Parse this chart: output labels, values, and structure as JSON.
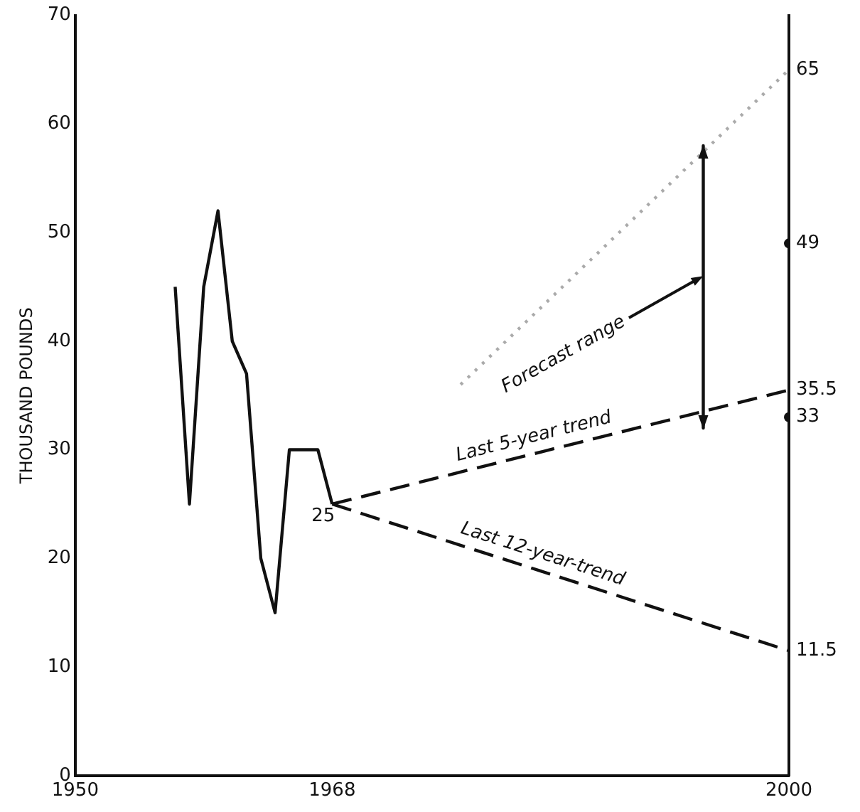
{
  "chart_data": {
    "type": "line",
    "ylabel": "THOUSAND POUNDS",
    "xlim": [
      1950,
      2000
    ],
    "xticks": [
      1950,
      1968,
      2000
    ],
    "ylim": [
      0,
      70
    ],
    "yticks": [
      0,
      10,
      20,
      30,
      40,
      50,
      60,
      70
    ],
    "grid": false,
    "legend": false,
    "annotations": [
      {
        "text": "Forecast range",
        "x": 1994,
        "y": 46
      }
    ],
    "series": [
      {
        "type": "line",
        "color": "#111111",
        "line_style": "solid",
        "x": [
          1957,
          1958,
          1959,
          1960,
          1961,
          1962,
          1963,
          1964,
          1965,
          1967,
          1968
        ],
        "values": [
          45,
          25,
          45,
          52,
          40,
          37,
          20,
          15,
          30,
          30,
          25
        ],
        "value_labels": [
          null,
          null,
          null,
          null,
          null,
          null,
          null,
          null,
          null,
          null,
          "25"
        ]
      },
      {
        "type": "line",
        "name": "Last 5-year trend",
        "color": "#111111",
        "line_style": "dashed",
        "x": [
          1968,
          2000
        ],
        "values": [
          25,
          35.5
        ],
        "value_labels": [
          null,
          "35.5"
        ]
      },
      {
        "type": "line",
        "name": "Last 12-year-trend",
        "color": "#111111",
        "line_style": "dashed",
        "x": [
          1968,
          2000
        ],
        "values": [
          25,
          11.5
        ],
        "value_labels": [
          null,
          "11.5"
        ]
      },
      {
        "type": "line",
        "color": "#aaaaaa",
        "line_style": "dotted",
        "x": [
          1977,
          2000
        ],
        "values": [
          36,
          65
        ],
        "value_labels": [
          null,
          "65"
        ]
      },
      {
        "type": "line",
        "color": "#111111",
        "line_style": "solid",
        "x": [
          1994,
          1994
        ],
        "values": [
          58,
          32
        ]
      },
      {
        "type": "scatter",
        "color": "#111111",
        "marker": "circle",
        "x": [
          2000,
          2000
        ],
        "values": [
          49,
          33
        ],
        "value_labels": [
          "49",
          "33"
        ]
      }
    ]
  }
}
